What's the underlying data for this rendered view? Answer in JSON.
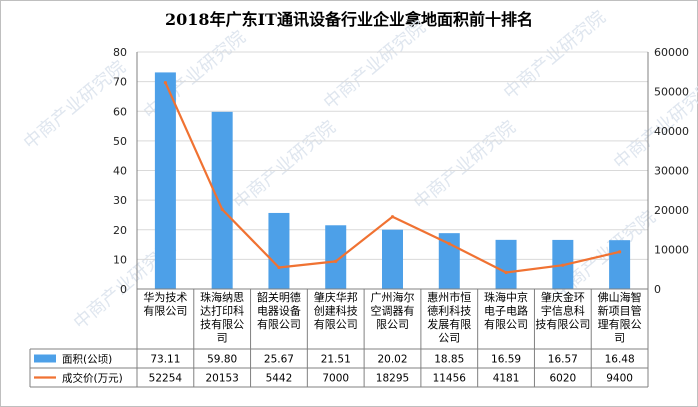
{
  "title": "2018年广东IT通讯设备行业企业拿地面积前十排名",
  "watermark": "中商产业研究院",
  "colors": {
    "bar": "#4da0e8",
    "line": "#f07232",
    "grid": "#d9d9d9",
    "axis": "#808080"
  },
  "chart_data": {
    "type": "bar",
    "categories": [
      [
        "华为技术",
        "有限公司"
      ],
      [
        "珠海纳思",
        "达打印科",
        "技有限公",
        "司"
      ],
      [
        "韶关明德",
        "电器设备",
        "有限公司"
      ],
      [
        "肇庆华邦",
        "创建科技",
        "有限公司"
      ],
      [
        "广州海尔",
        "空调器有",
        "限公司"
      ],
      [
        "惠州市恒",
        "德利科技",
        "发展有限",
        "公司"
      ],
      [
        "珠海中京",
        "电子电路",
        "有限公司"
      ],
      [
        "肇庆金环",
        "宇信息科",
        "技有限公司"
      ],
      [
        "佛山海智",
        "新项目管",
        "理有限公",
        "司"
      ]
    ],
    "series": [
      {
        "name": "面积(公顷)",
        "type": "bar",
        "axis": "left",
        "values": [
          73.11,
          59.8,
          25.67,
          21.51,
          20.02,
          18.85,
          16.59,
          16.57,
          16.48
        ],
        "labels": [
          "73.11",
          "59.80",
          "25.67",
          "21.51",
          "20.02",
          "18.85",
          "16.59",
          "16.57",
          "16.48"
        ]
      },
      {
        "name": "成交价(万元)",
        "type": "line",
        "axis": "right",
        "values": [
          52254,
          20153,
          5442,
          7000,
          18295,
          11456,
          4181,
          6020,
          9400
        ],
        "labels": [
          "52254",
          "20153",
          "5442",
          "7000",
          "18295",
          "11456",
          "4181",
          "6020",
          "9400"
        ]
      }
    ],
    "y_left": {
      "ylim": [
        0,
        80
      ],
      "ticks": [
        0,
        10,
        20,
        30,
        40,
        50,
        60,
        70,
        80
      ]
    },
    "y_right": {
      "ylim": [
        0,
        60000
      ],
      "ticks": [
        0,
        10000,
        20000,
        30000,
        40000,
        50000,
        60000
      ]
    },
    "grid": true,
    "legend": "data-table"
  }
}
